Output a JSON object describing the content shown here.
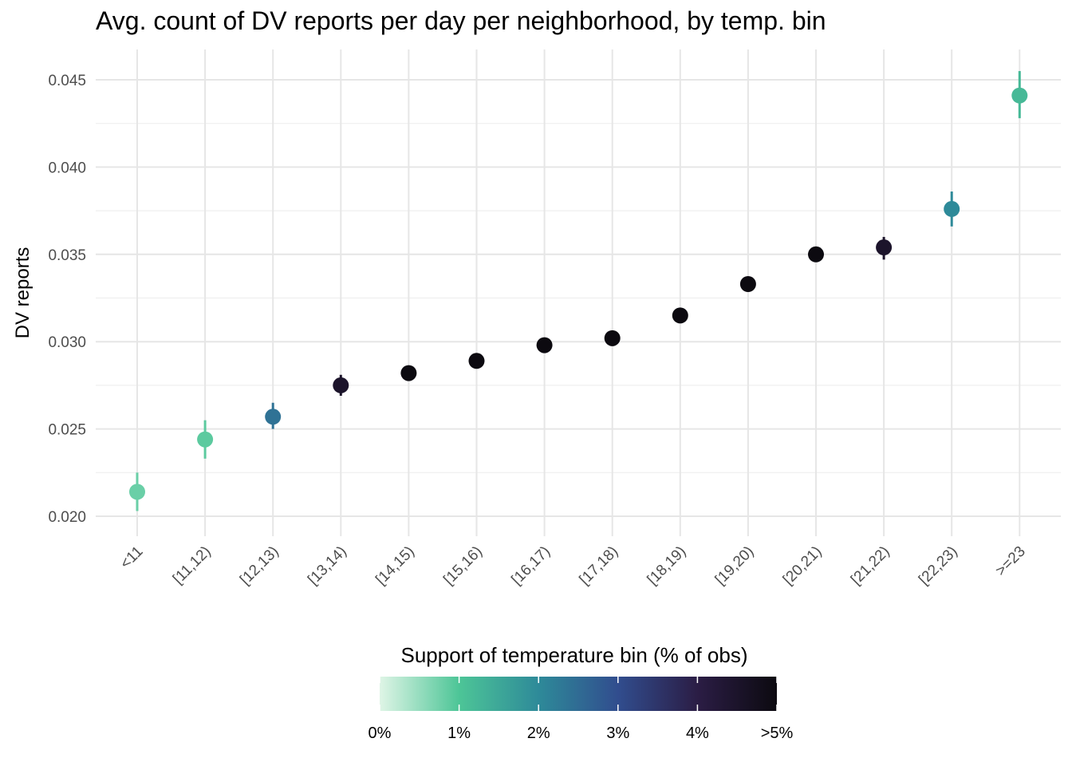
{
  "chart_data": {
    "type": "scatter",
    "title": "Avg. count of DV reports per day per neighborhood, by temp. bin",
    "xlabel": "",
    "ylabel": "DV reports",
    "categories": [
      "<11",
      "[11,12)",
      "[12,13)",
      "[13,14)",
      "[14,15)",
      "[15,16)",
      "[16,17)",
      "[17,18)",
      "[18,19)",
      "[19,20)",
      "[20,21)",
      "[21,22)",
      "[22,23)",
      ">=23"
    ],
    "values": [
      0.0214,
      0.0244,
      0.0257,
      0.0275,
      0.0282,
      0.0289,
      0.0298,
      0.0302,
      0.0315,
      0.0333,
      0.035,
      0.0354,
      0.0376,
      0.0441
    ],
    "error_low": [
      0.0203,
      0.0233,
      0.025,
      0.0269,
      0.0278,
      0.0286,
      0.0295,
      0.0299,
      0.0312,
      0.0331,
      0.0347,
      0.0347,
      0.0366,
      0.0428
    ],
    "error_high": [
      0.0225,
      0.0255,
      0.0265,
      0.0281,
      0.0286,
      0.0292,
      0.0301,
      0.0305,
      0.0318,
      0.0336,
      0.0354,
      0.036,
      0.0386,
      0.0455
    ],
    "support_pct": [
      0.8,
      0.9,
      2.4,
      4.5,
      5.0,
      5.0,
      5.0,
      5.0,
      5.0,
      5.0,
      5.0,
      4.5,
      2.0,
      1.2
    ],
    "ylim": [
      0.019,
      0.0465
    ],
    "yticks": [
      "0.020",
      "0.025",
      "0.030",
      "0.035",
      "0.040",
      "0.045"
    ],
    "grid": true,
    "legend": {
      "title": "Support of temperature bin (% of obs)",
      "position": "bottom",
      "labels": [
        "0%",
        "1%",
        "2%",
        "3%",
        "4%",
        ">5%"
      ],
      "colors": [
        "#dff5e6",
        "#4dc597",
        "#2e8a99",
        "#314d8e",
        "#2b1d45",
        "#0c0a10"
      ]
    }
  }
}
